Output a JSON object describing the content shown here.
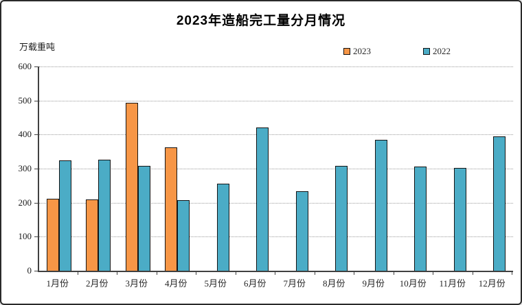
{
  "chart_data": {
    "type": "bar",
    "title": "2023年造船完工量分月情况",
    "ylabel": "万载重吨",
    "xlabel": "",
    "categories": [
      "1月份",
      "2月份",
      "3月份",
      "4月份",
      "5月份",
      "6月份",
      "7月份",
      "8月份",
      "9月份",
      "10月份",
      "11月份",
      "12月份"
    ],
    "series": [
      {
        "name": "2023",
        "color": "#F79646",
        "values": [
          211,
          210,
          493,
          363,
          null,
          null,
          null,
          null,
          null,
          null,
          null,
          null
        ]
      },
      {
        "name": "2022",
        "color": "#4BACC6",
        "values": [
          325,
          327,
          308,
          208,
          255,
          421,
          234,
          309,
          385,
          307,
          303,
          395
        ]
      }
    ],
    "ylim": [
      0,
      600
    ],
    "ytick_step": 100,
    "yticks": [
      0,
      100,
      200,
      300,
      400,
      500,
      600
    ],
    "grid": "horizontal-dotted",
    "legend_position": "top-right",
    "bar_border_color": "#141414",
    "gridline_color": "#9a9a9a",
    "axis_color": "#404040",
    "background_color": "#ffffff"
  }
}
